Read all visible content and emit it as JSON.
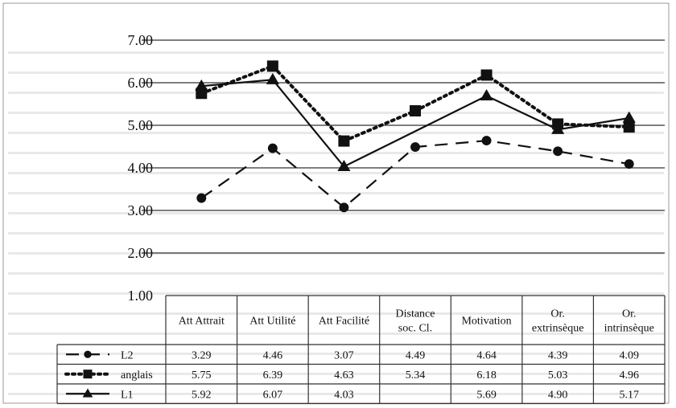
{
  "chart_data": {
    "type": "line",
    "categories": [
      [
        "Att Attrait"
      ],
      [
        "Att Utilité"
      ],
      [
        "Att Facilité"
      ],
      [
        "Distance",
        "soc. Cl."
      ],
      [
        "Motivation"
      ],
      [
        "Or.",
        "extrinsèque"
      ],
      [
        "Or.",
        "intrinsèque"
      ]
    ],
    "ylim": [
      1.0,
      7.0
    ],
    "yticks": [
      "1.00",
      "2.00",
      "3.00",
      "4.00",
      "5.00",
      "6.00",
      "7.00"
    ],
    "grid": true,
    "legend": "data table",
    "series": [
      {
        "name": "L2",
        "dash": "long-dash",
        "marker": "circle",
        "values": [
          3.29,
          4.46,
          3.07,
          4.49,
          4.64,
          4.39,
          4.09
        ],
        "labels": [
          "3.29",
          "4.46",
          "3.07",
          "4.49",
          "4.64",
          "4.39",
          "4.09"
        ]
      },
      {
        "name": "anglais",
        "dash": "dotted",
        "marker": "square",
        "values": [
          5.75,
          6.39,
          4.63,
          5.34,
          6.18,
          5.03,
          4.96
        ],
        "labels": [
          "5.75",
          "6.39",
          "4.63",
          "5.34",
          "6.18",
          "5.03",
          "4.96"
        ]
      },
      {
        "name": "L1",
        "dash": "solid",
        "marker": "triangle",
        "values": [
          5.92,
          6.07,
          4.03,
          null,
          5.69,
          4.9,
          5.17
        ],
        "labels": [
          "5.92",
          "6.07",
          "4.03",
          "",
          "5.69",
          "4.90",
          "5.17"
        ]
      }
    ]
  }
}
